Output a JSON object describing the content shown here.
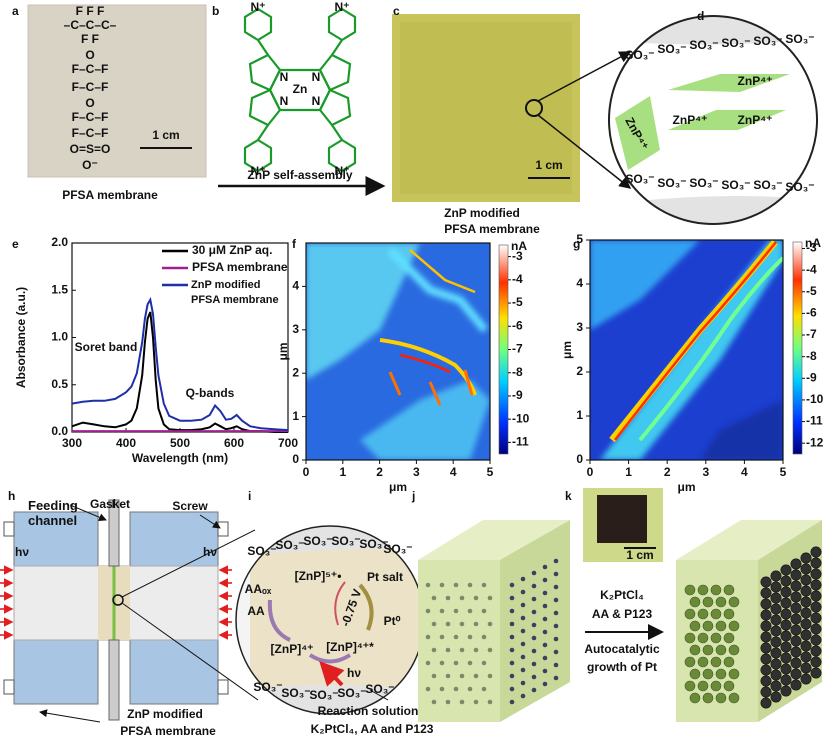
{
  "panel_labels": [
    "a",
    "b",
    "c",
    "d",
    "e",
    "f",
    "g",
    "h",
    "i",
    "j",
    "k"
  ],
  "a": {
    "structure": [
      "F   F   F",
      "–C–C–C–",
      "F   F",
      "O",
      "F–C–F",
      "F–C–F",
      "O",
      "F–C–F",
      "F–C–F",
      "O=S=O",
      "O⁻"
    ],
    "scale_bar": "1 cm",
    "caption": "PFSA membrane"
  },
  "b": {
    "metal": "Zn",
    "nitrogen": "N",
    "pyridinium": "N⁺",
    "arrow_label": "ZnP self-assembly"
  },
  "c": {
    "scale_bar": "1 cm",
    "caption": [
      "ZnP modified",
      "PFSA membrane"
    ]
  },
  "d": {
    "cation": "ZnP⁴⁺",
    "sulfonate": "SO₃⁻"
  },
  "chart_data": [
    {
      "type": "line",
      "xlabel": "Wavelength (nm)",
      "ylabel": "Absorbance (a.u.)",
      "x": [
        300,
        320,
        340,
        360,
        380,
        400,
        410,
        420,
        430,
        435,
        440,
        445,
        450,
        455,
        460,
        470,
        480,
        500,
        520,
        540,
        555,
        565,
        575,
        585,
        595,
        605,
        615,
        630,
        650,
        675,
        700
      ],
      "series": [
        {
          "name": "30 μM ZnP aq.",
          "color": "#000000",
          "values": [
            0.06,
            0.1,
            0.08,
            0.06,
            0.05,
            0.08,
            0.12,
            0.25,
            0.6,
            0.95,
            1.2,
            1.27,
            1.0,
            0.55,
            0.25,
            0.08,
            0.03,
            0.02,
            0.02,
            0.03,
            0.05,
            0.09,
            0.06,
            0.03,
            0.04,
            0.06,
            0.03,
            0.01,
            0.01,
            0,
            0
          ]
        },
        {
          "name": "PFSA membrane",
          "color": "#a0208f",
          "values": [
            0.01,
            0.01,
            0.01,
            0.01,
            0.01,
            0.01,
            0.01,
            0.01,
            0.01,
            0.01,
            0.01,
            0.01,
            0.01,
            0.01,
            0.01,
            0.01,
            0.01,
            0.01,
            0.01,
            0.01,
            0.01,
            0.01,
            0.01,
            0.01,
            0.01,
            0.01,
            0.01,
            0.01,
            0.01,
            0.01,
            0.01
          ]
        },
        {
          "name": "ZnP modified PFSA membrane",
          "color": "#1f2fa8",
          "values": [
            0.3,
            0.32,
            0.33,
            0.33,
            0.35,
            0.42,
            0.48,
            0.62,
            0.95,
            1.2,
            1.35,
            1.4,
            1.25,
            0.9,
            0.6,
            0.3,
            0.17,
            0.12,
            0.12,
            0.13,
            0.18,
            0.28,
            0.22,
            0.13,
            0.14,
            0.18,
            0.12,
            0.06,
            0.04,
            0.03,
            0.02
          ]
        }
      ],
      "xlim": [
        300,
        700
      ],
      "xticks": [
        300,
        400,
        500,
        600,
        700
      ],
      "ylim": [
        0,
        2
      ],
      "yticks": [
        {
          "value": 0,
          "label": "0.0"
        },
        {
          "value": 0.5,
          "label": "0.5"
        },
        {
          "value": 1,
          "label": "1.0"
        },
        {
          "value": 1.5,
          "label": "1.5"
        },
        {
          "value": 2,
          "label": "2.0"
        }
      ],
      "annotations": [
        "Soret band",
        "Q-bands"
      ],
      "legend": "upper right"
    },
    {
      "type": "heatmap",
      "xlabel": "μm",
      "ylabel": "μm",
      "xlim": [
        0,
        5
      ],
      "xticks": [
        0,
        1,
        2,
        3,
        4,
        5
      ],
      "ylim": [
        0,
        5
      ],
      "yticks": [
        0,
        1,
        2,
        3,
        4
      ],
      "colorbar_label": "nA",
      "clim": [
        -11.5,
        -2.5
      ],
      "colorbar_ticks": [
        -3,
        -4,
        -5,
        -6,
        -7,
        -8,
        -9,
        -10,
        -11
      ]
    },
    {
      "type": "heatmap",
      "xlabel": "μm",
      "ylabel": "μm",
      "xlim": [
        0,
        5
      ],
      "xticks": [
        0,
        1,
        2,
        3,
        4,
        5
      ],
      "ylim": [
        0,
        5
      ],
      "yticks": [
        0,
        1,
        2,
        3,
        4,
        5
      ],
      "colorbar_label": "nA",
      "clim": [
        -12.5,
        -2.7
      ],
      "colorbar_ticks": [
        -3,
        -4,
        -5,
        -6,
        -7,
        -8,
        -9,
        -10,
        -11,
        -12
      ]
    }
  ],
  "h": {
    "feeding": "Feeding channel",
    "gasket": "Gasket",
    "screw": "Screw",
    "light": "hν",
    "caption": [
      "ZnP modified",
      "PFSA membrane"
    ]
  },
  "i": {
    "sulfonate": "SO₃⁻",
    "aa_ox": "AAₒₓ",
    "aa": "AA",
    "radical": "[ZnP]⁵⁺•",
    "ground": "[ZnP]⁴⁺",
    "excited": "[ZnP]⁴⁺*",
    "pt_salt": "Pt salt",
    "pt0": "Pt⁰",
    "potential": "-0.75 V",
    "light": "hν",
    "caption": [
      "Reaction solution",
      "K₂PtCl₄, AA and P123"
    ]
  },
  "k": {
    "scale_bar": "1 cm",
    "arrow_labels": [
      "K₂PtCl₄",
      "AA & P123",
      "Autocatalytic",
      "growth of Pt"
    ]
  }
}
